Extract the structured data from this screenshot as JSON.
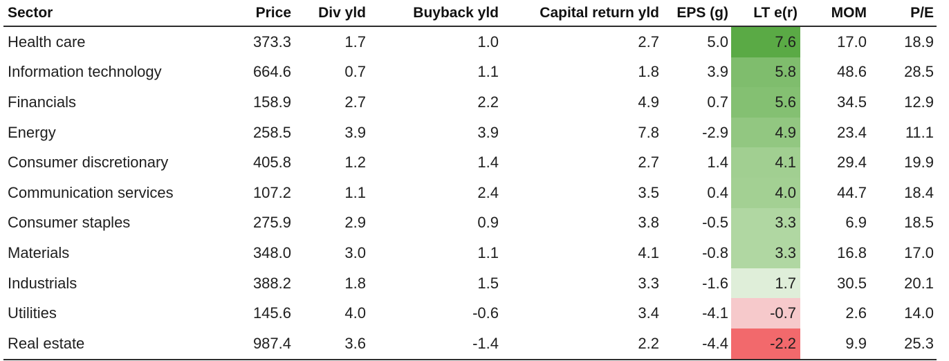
{
  "table": {
    "columns": [
      "Sector",
      "Price",
      "Div yld",
      "Buyback yld",
      "Capital return yld",
      "EPS (g)",
      "LT e(r)",
      "MOM",
      "P/E"
    ],
    "rows": [
      {
        "sector": "Health care",
        "price": "373.3",
        "div_yld": "1.7",
        "buyback_yld": "1.0",
        "capital_return_yld": "2.7",
        "eps_g": "5.0",
        "lt_er": "7.6",
        "mom": "17.0",
        "pe": "18.9",
        "heat_color": "#5aaa45"
      },
      {
        "sector": "Information technology",
        "price": "664.6",
        "div_yld": "0.7",
        "buyback_yld": "1.1",
        "capital_return_yld": "1.8",
        "eps_g": "3.9",
        "lt_er": "5.8",
        "mom": "48.6",
        "pe": "28.5",
        "heat_color": "#7fbd6d"
      },
      {
        "sector": "Financials",
        "price": "158.9",
        "div_yld": "2.7",
        "buyback_yld": "2.2",
        "capital_return_yld": "4.9",
        "eps_g": "0.7",
        "lt_er": "5.6",
        "mom": "34.5",
        "pe": "12.9",
        "heat_color": "#84c072"
      },
      {
        "sector": "Energy",
        "price": "258.5",
        "div_yld": "3.9",
        "buyback_yld": "3.9",
        "capital_return_yld": "7.8",
        "eps_g": "-2.9",
        "lt_er": "4.9",
        "mom": "23.4",
        "pe": "11.1",
        "heat_color": "#92c781"
      },
      {
        "sector": "Consumer discretionary",
        "price": "405.8",
        "div_yld": "1.2",
        "buyback_yld": "1.4",
        "capital_return_yld": "2.7",
        "eps_g": "1.4",
        "lt_er": "4.1",
        "mom": "29.4",
        "pe": "19.9",
        "heat_color": "#a1cf91"
      },
      {
        "sector": "Communication services",
        "price": "107.2",
        "div_yld": "1.1",
        "buyback_yld": "2.4",
        "capital_return_yld": "3.5",
        "eps_g": "0.4",
        "lt_er": "4.0",
        "mom": "44.7",
        "pe": "18.4",
        "heat_color": "#a3d093"
      },
      {
        "sector": "Consumer staples",
        "price": "275.9",
        "div_yld": "2.9",
        "buyback_yld": "0.9",
        "capital_return_yld": "3.8",
        "eps_g": "-0.5",
        "lt_er": "3.3",
        "mom": "6.9",
        "pe": "18.5",
        "heat_color": "#b0d7a2"
      },
      {
        "sector": "Materials",
        "price": "348.0",
        "div_yld": "3.0",
        "buyback_yld": "1.1",
        "capital_return_yld": "4.1",
        "eps_g": "-0.8",
        "lt_er": "3.3",
        "mom": "16.8",
        "pe": "17.0",
        "heat_color": "#b0d7a2"
      },
      {
        "sector": "Industrials",
        "price": "388.2",
        "div_yld": "1.8",
        "buyback_yld": "1.5",
        "capital_return_yld": "3.3",
        "eps_g": "-1.6",
        "lt_er": "1.7",
        "mom": "30.5",
        "pe": "20.1",
        "heat_color": "#dfeed9"
      },
      {
        "sector": "Utilities",
        "price": "145.6",
        "div_yld": "4.0",
        "buyback_yld": "-0.6",
        "capital_return_yld": "3.4",
        "eps_g": "-4.1",
        "lt_er": "-0.7",
        "mom": "2.6",
        "pe": "14.0",
        "heat_color": "#f6c9cb"
      },
      {
        "sector": "Real estate",
        "price": "987.4",
        "div_yld": "3.6",
        "buyback_yld": "-1.4",
        "capital_return_yld": "2.2",
        "eps_g": "-4.4",
        "lt_er": "-2.2",
        "mom": "9.9",
        "pe": "25.3",
        "heat_color": "#f2696c"
      }
    ]
  }
}
